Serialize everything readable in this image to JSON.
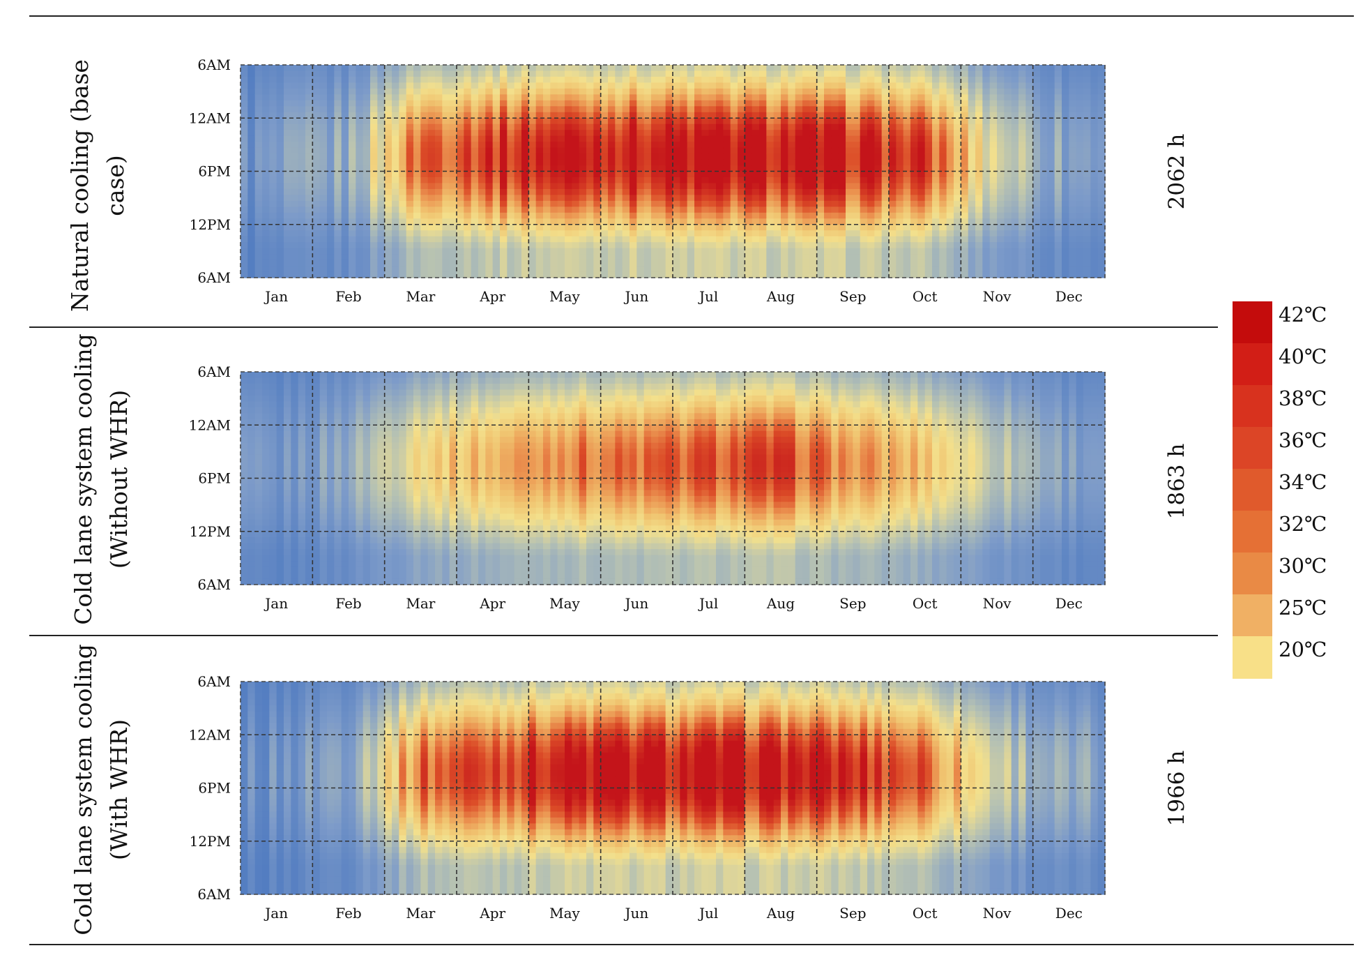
{
  "months": [
    "Jan",
    "Feb",
    "Mar",
    "Apr",
    "May",
    "Jun",
    "Jul",
    "Aug",
    "Sep",
    "Oct",
    "Nov",
    "Dec"
  ],
  "y_ticks": [
    "6AM",
    "12AM",
    "6PM",
    "12PM",
    "6AM"
  ],
  "legend": {
    "labels": [
      "42℃",
      "40℃",
      "38℃",
      "36℃",
      "34℃",
      "32℃",
      "30℃",
      "25℃",
      "20℃"
    ],
    "colors": [
      "#c40c0c",
      "#d21e16",
      "#d8321e",
      "#dc4526",
      "#e05a2c",
      "#e57035",
      "#e98a45",
      "#f0b064",
      "#f8e088"
    ]
  },
  "rows": [
    {
      "label_line1": "Natural cooling (base",
      "label_line2": "case)",
      "hours": "2062 h"
    },
    {
      "label_line1": "Cold lane system cooling",
      "label_line2": "(Without WHR)",
      "hours": "1863 h"
    },
    {
      "label_line1": "Cold lane system cooling",
      "label_line2": "(With WHR)",
      "hours": "1966 h"
    }
  ],
  "chart_data": [
    {
      "type": "heatmap",
      "title": "Natural cooling (base case)",
      "x_categories": [
        "Jan",
        "Feb",
        "Mar",
        "Apr",
        "May",
        "Jun",
        "Jul",
        "Aug",
        "Sep",
        "Oct",
        "Nov",
        "Dec"
      ],
      "y_categories": [
        "6AM",
        "12AM",
        "6PM",
        "12PM",
        "6AM"
      ],
      "hours_label": "2062 h",
      "color_scale": {
        "min": 20,
        "max": 42,
        "unit": "℃"
      },
      "monthly_peak_temp": [
        12,
        17,
        37,
        40,
        42,
        42,
        42,
        42,
        41,
        38,
        24,
        15
      ],
      "intensity": 1.0
    },
    {
      "type": "heatmap",
      "title": "Cold lane system cooling (Without WHR)",
      "x_categories": [
        "Jan",
        "Feb",
        "Mar",
        "Apr",
        "May",
        "Jun",
        "Jul",
        "Aug",
        "Sep",
        "Oct",
        "Nov",
        "Dec"
      ],
      "y_categories": [
        "6AM",
        "12AM",
        "6PM",
        "12PM",
        "6AM"
      ],
      "hours_label": "1863 h",
      "color_scale": {
        "min": 20,
        "max": 42,
        "unit": "℃"
      },
      "monthly_peak_temp": [
        12,
        17,
        28,
        31,
        35,
        35,
        37,
        38,
        33,
        30,
        22,
        15
      ],
      "intensity": 0.66
    },
    {
      "type": "heatmap",
      "title": "Cold lane system cooling (With WHR)",
      "x_categories": [
        "Jan",
        "Feb",
        "Mar",
        "Apr",
        "May",
        "Jun",
        "Jul",
        "Aug",
        "Sep",
        "Oct",
        "Nov",
        "Dec"
      ],
      "y_categories": [
        "6AM",
        "12AM",
        "6PM",
        "12PM",
        "6AM"
      ],
      "hours_label": "1966 h",
      "color_scale": {
        "min": 20,
        "max": 42,
        "unit": "℃"
      },
      "monthly_peak_temp": [
        12,
        17,
        36,
        39,
        42,
        42,
        42,
        42,
        40,
        37,
        23,
        15
      ],
      "intensity": 0.96
    }
  ]
}
